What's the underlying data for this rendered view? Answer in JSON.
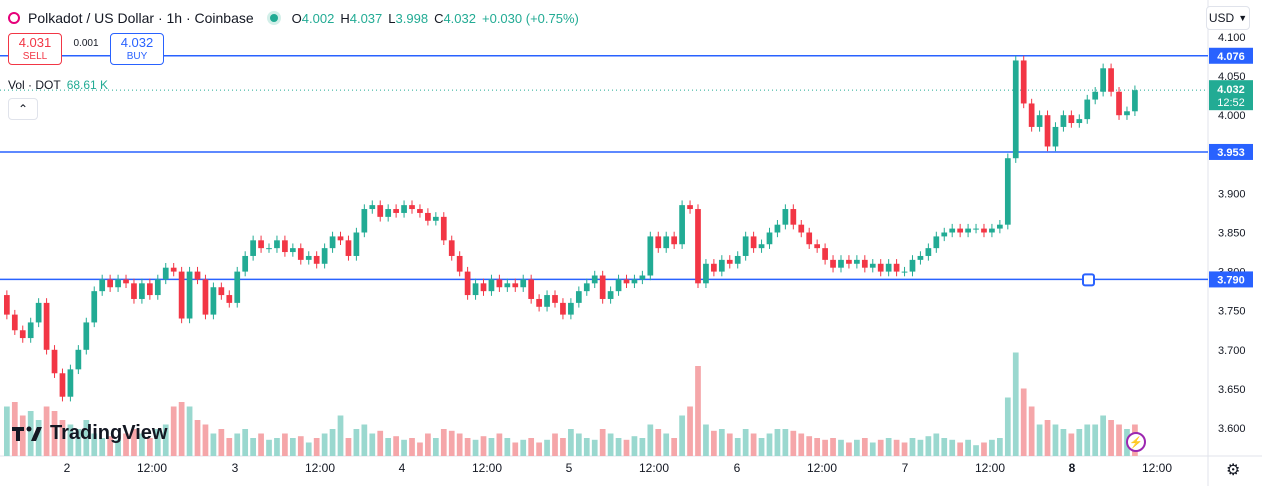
{
  "header": {
    "title": "Polkadot / US Dollar · 1h · Coinbase",
    "open_label": "O",
    "open": "4.002",
    "high_label": "H",
    "high": "4.037",
    "low_label": "L",
    "low": "3.998",
    "close_label": "C",
    "close": "4.032",
    "change": "+0.030 (+0.75%)"
  },
  "trade": {
    "sell_price": "4.031",
    "sell_label": "SELL",
    "spread": "0.001",
    "buy_price": "4.032",
    "buy_label": "BUY"
  },
  "volume": {
    "label": "Vol · DOT",
    "value": "68.61 K"
  },
  "currency": "USD",
  "brand": "TradingView",
  "colors": {
    "up": "#22ab94",
    "down": "#f23645",
    "line": "#2962ff",
    "vol_up": "#9ad8cf",
    "vol_down": "#f5a6a9"
  },
  "chart_data": {
    "type": "candlestick",
    "ylim": [
      3.57,
      4.11
    ],
    "y_ticks": [
      "4.100",
      "4.050",
      "4.000",
      "3.900",
      "3.850",
      "3.800",
      "3.750",
      "3.700",
      "3.650",
      "3.600"
    ],
    "x_ticks": [
      "2",
      "12:00",
      "3",
      "12:00",
      "4",
      "12:00",
      "5",
      "12:00",
      "6",
      "12:00",
      "7",
      "12:00",
      "8",
      "12:00"
    ],
    "horizontal_lines": [
      {
        "value": 4.076,
        "label": "4.076"
      },
      {
        "value": 3.953,
        "label": "3.953"
      },
      {
        "value": 3.79,
        "label": "3.790"
      }
    ],
    "last_price": {
      "value": 4.032,
      "label": "4.032",
      "countdown": "12:52"
    },
    "candles": [
      [
        3.77,
        3.745
      ],
      [
        3.745,
        3.725
      ],
      [
        3.725,
        3.715
      ],
      [
        3.715,
        3.735
      ],
      [
        3.735,
        3.76
      ],
      [
        3.76,
        3.7
      ],
      [
        3.7,
        3.67
      ],
      [
        3.67,
        3.64
      ],
      [
        3.64,
        3.675
      ],
      [
        3.675,
        3.7
      ],
      [
        3.7,
        3.735
      ],
      [
        3.735,
        3.775
      ],
      [
        3.775,
        3.79
      ],
      [
        3.79,
        3.78
      ],
      [
        3.78,
        3.79
      ],
      [
        3.79,
        3.785
      ],
      [
        3.785,
        3.765
      ],
      [
        3.765,
        3.785
      ],
      [
        3.785,
        3.77
      ],
      [
        3.77,
        3.79
      ],
      [
        3.79,
        3.805
      ],
      [
        3.805,
        3.8
      ],
      [
        3.8,
        3.74
      ],
      [
        3.74,
        3.8
      ],
      [
        3.8,
        3.79
      ],
      [
        3.79,
        3.745
      ],
      [
        3.745,
        3.78
      ],
      [
        3.78,
        3.77
      ],
      [
        3.77,
        3.76
      ],
      [
        3.76,
        3.8
      ],
      [
        3.8,
        3.82
      ],
      [
        3.82,
        3.84
      ],
      [
        3.84,
        3.83
      ],
      [
        3.83,
        3.83
      ],
      [
        3.83,
        3.84
      ],
      [
        3.84,
        3.825
      ],
      [
        3.825,
        3.83
      ],
      [
        3.83,
        3.815
      ],
      [
        3.815,
        3.82
      ],
      [
        3.82,
        3.81
      ],
      [
        3.81,
        3.83
      ],
      [
        3.83,
        3.845
      ],
      [
        3.845,
        3.84
      ],
      [
        3.84,
        3.82
      ],
      [
        3.82,
        3.85
      ],
      [
        3.85,
        3.88
      ],
      [
        3.88,
        3.885
      ],
      [
        3.885,
        3.87
      ],
      [
        3.87,
        3.88
      ],
      [
        3.88,
        3.875
      ],
      [
        3.875,
        3.885
      ],
      [
        3.885,
        3.88
      ],
      [
        3.88,
        3.875
      ],
      [
        3.875,
        3.865
      ],
      [
        3.865,
        3.87
      ],
      [
        3.87,
        3.84
      ],
      [
        3.84,
        3.82
      ],
      [
        3.82,
        3.8
      ],
      [
        3.8,
        3.77
      ],
      [
        3.77,
        3.785
      ],
      [
        3.785,
        3.775
      ],
      [
        3.775,
        3.79
      ],
      [
        3.79,
        3.78
      ],
      [
        3.78,
        3.785
      ],
      [
        3.785,
        3.78
      ],
      [
        3.78,
        3.79
      ],
      [
        3.79,
        3.765
      ],
      [
        3.765,
        3.755
      ],
      [
        3.755,
        3.77
      ],
      [
        3.77,
        3.76
      ],
      [
        3.76,
        3.745
      ],
      [
        3.745,
        3.76
      ],
      [
        3.76,
        3.775
      ],
      [
        3.775,
        3.785
      ],
      [
        3.785,
        3.795
      ],
      [
        3.795,
        3.765
      ],
      [
        3.765,
        3.775
      ],
      [
        3.775,
        3.79
      ],
      [
        3.79,
        3.785
      ],
      [
        3.785,
        3.79
      ],
      [
        3.79,
        3.795
      ],
      [
        3.795,
        3.845
      ],
      [
        3.845,
        3.83
      ],
      [
        3.83,
        3.845
      ],
      [
        3.845,
        3.835
      ],
      [
        3.835,
        3.885
      ],
      [
        3.885,
        3.88
      ],
      [
        3.88,
        3.785
      ],
      [
        3.785,
        3.81
      ],
      [
        3.81,
        3.8
      ],
      [
        3.8,
        3.815
      ],
      [
        3.815,
        3.81
      ],
      [
        3.81,
        3.82
      ],
      [
        3.82,
        3.845
      ],
      [
        3.845,
        3.83
      ],
      [
        3.83,
        3.835
      ],
      [
        3.835,
        3.85
      ],
      [
        3.85,
        3.86
      ],
      [
        3.86,
        3.88
      ],
      [
        3.88,
        3.86
      ],
      [
        3.86,
        3.85
      ],
      [
        3.85,
        3.835
      ],
      [
        3.835,
        3.83
      ],
      [
        3.83,
        3.815
      ],
      [
        3.815,
        3.805
      ],
      [
        3.805,
        3.815
      ],
      [
        3.815,
        3.81
      ],
      [
        3.81,
        3.815
      ],
      [
        3.815,
        3.805
      ],
      [
        3.805,
        3.81
      ],
      [
        3.81,
        3.8
      ],
      [
        3.8,
        3.81
      ],
      [
        3.81,
        3.8
      ],
      [
        3.8,
        3.8
      ],
      [
        3.8,
        3.815
      ],
      [
        3.815,
        3.82
      ],
      [
        3.82,
        3.83
      ],
      [
        3.83,
        3.845
      ],
      [
        3.845,
        3.85
      ],
      [
        3.85,
        3.855
      ],
      [
        3.855,
        3.85
      ],
      [
        3.85,
        3.855
      ],
      [
        3.855,
        3.855
      ],
      [
        3.855,
        3.85
      ],
      [
        3.85,
        3.855
      ],
      [
        3.855,
        3.86
      ],
      [
        3.86,
        3.945
      ],
      [
        3.945,
        4.07
      ],
      [
        4.07,
        4.015
      ],
      [
        4.015,
        3.985
      ],
      [
        3.985,
        4.0
      ],
      [
        4.0,
        3.96
      ],
      [
        3.96,
        3.985
      ],
      [
        3.985,
        4.0
      ],
      [
        4.0,
        3.99
      ],
      [
        3.99,
        3.995
      ],
      [
        3.995,
        4.02
      ],
      [
        4.02,
        4.03
      ],
      [
        4.03,
        4.06
      ],
      [
        4.06,
        4.03
      ],
      [
        4.03,
        4.0
      ],
      [
        4.0,
        4.005
      ],
      [
        4.005,
        4.032
      ]
    ],
    "volume": [
      [
        55,
        "up"
      ],
      [
        60,
        "dn"
      ],
      [
        45,
        "dn"
      ],
      [
        50,
        "up"
      ],
      [
        40,
        "up"
      ],
      [
        55,
        "dn"
      ],
      [
        50,
        "dn"
      ],
      [
        40,
        "dn"
      ],
      [
        35,
        "up"
      ],
      [
        30,
        "up"
      ],
      [
        40,
        "up"
      ],
      [
        25,
        "up"
      ],
      [
        20,
        "up"
      ],
      [
        22,
        "dn"
      ],
      [
        18,
        "up"
      ],
      [
        25,
        "dn"
      ],
      [
        30,
        "dn"
      ],
      [
        25,
        "up"
      ],
      [
        20,
        "dn"
      ],
      [
        30,
        "up"
      ],
      [
        35,
        "up"
      ],
      [
        55,
        "dn"
      ],
      [
        60,
        "dn"
      ],
      [
        55,
        "up"
      ],
      [
        40,
        "dn"
      ],
      [
        35,
        "dn"
      ],
      [
        25,
        "up"
      ],
      [
        30,
        "dn"
      ],
      [
        20,
        "dn"
      ],
      [
        25,
        "up"
      ],
      [
        30,
        "up"
      ],
      [
        20,
        "up"
      ],
      [
        25,
        "dn"
      ],
      [
        18,
        "up"
      ],
      [
        20,
        "up"
      ],
      [
        25,
        "dn"
      ],
      [
        20,
        "up"
      ],
      [
        22,
        "dn"
      ],
      [
        15,
        "up"
      ],
      [
        20,
        "dn"
      ],
      [
        25,
        "up"
      ],
      [
        30,
        "up"
      ],
      [
        45,
        "up"
      ],
      [
        20,
        "dn"
      ],
      [
        30,
        "up"
      ],
      [
        35,
        "up"
      ],
      [
        25,
        "up"
      ],
      [
        28,
        "dn"
      ],
      [
        20,
        "up"
      ],
      [
        22,
        "dn"
      ],
      [
        18,
        "up"
      ],
      [
        20,
        "dn"
      ],
      [
        15,
        "dn"
      ],
      [
        25,
        "dn"
      ],
      [
        20,
        "up"
      ],
      [
        30,
        "dn"
      ],
      [
        28,
        "dn"
      ],
      [
        25,
        "dn"
      ],
      [
        20,
        "dn"
      ],
      [
        18,
        "up"
      ],
      [
        22,
        "dn"
      ],
      [
        20,
        "up"
      ],
      [
        25,
        "dn"
      ],
      [
        20,
        "up"
      ],
      [
        15,
        "dn"
      ],
      [
        18,
        "up"
      ],
      [
        20,
        "dn"
      ],
      [
        15,
        "dn"
      ],
      [
        18,
        "up"
      ],
      [
        25,
        "dn"
      ],
      [
        20,
        "dn"
      ],
      [
        30,
        "up"
      ],
      [
        25,
        "up"
      ],
      [
        20,
        "up"
      ],
      [
        18,
        "up"
      ],
      [
        30,
        "dn"
      ],
      [
        25,
        "up"
      ],
      [
        20,
        "up"
      ],
      [
        18,
        "dn"
      ],
      [
        22,
        "up"
      ],
      [
        20,
        "up"
      ],
      [
        35,
        "up"
      ],
      [
        30,
        "dn"
      ],
      [
        25,
        "up"
      ],
      [
        20,
        "dn"
      ],
      [
        45,
        "up"
      ],
      [
        55,
        "dn"
      ],
      [
        100,
        "dn"
      ],
      [
        35,
        "up"
      ],
      [
        28,
        "dn"
      ],
      [
        30,
        "up"
      ],
      [
        25,
        "dn"
      ],
      [
        20,
        "up"
      ],
      [
        30,
        "up"
      ],
      [
        25,
        "dn"
      ],
      [
        20,
        "up"
      ],
      [
        25,
        "up"
      ],
      [
        30,
        "up"
      ],
      [
        30,
        "up"
      ],
      [
        28,
        "dn"
      ],
      [
        25,
        "dn"
      ],
      [
        22,
        "dn"
      ],
      [
        20,
        "dn"
      ],
      [
        18,
        "dn"
      ],
      [
        20,
        "dn"
      ],
      [
        18,
        "up"
      ],
      [
        15,
        "dn"
      ],
      [
        18,
        "up"
      ],
      [
        20,
        "dn"
      ],
      [
        15,
        "up"
      ],
      [
        18,
        "dn"
      ],
      [
        20,
        "up"
      ],
      [
        18,
        "dn"
      ],
      [
        15,
        "dn"
      ],
      [
        20,
        "up"
      ],
      [
        18,
        "up"
      ],
      [
        22,
        "up"
      ],
      [
        25,
        "up"
      ],
      [
        20,
        "up"
      ],
      [
        18,
        "up"
      ],
      [
        15,
        "dn"
      ],
      [
        18,
        "up"
      ],
      [
        12,
        "up"
      ],
      [
        15,
        "dn"
      ],
      [
        18,
        "up"
      ],
      [
        20,
        "up"
      ],
      [
        65,
        "up"
      ],
      [
        115,
        "up"
      ],
      [
        75,
        "dn"
      ],
      [
        55,
        "dn"
      ],
      [
        35,
        "up"
      ],
      [
        40,
        "dn"
      ],
      [
        35,
        "up"
      ],
      [
        30,
        "up"
      ],
      [
        25,
        "dn"
      ],
      [
        30,
        "up"
      ],
      [
        35,
        "up"
      ],
      [
        35,
        "up"
      ],
      [
        45,
        "up"
      ],
      [
        40,
        "dn"
      ],
      [
        35,
        "dn"
      ],
      [
        30,
        "up"
      ],
      [
        35,
        "dn"
      ]
    ]
  }
}
